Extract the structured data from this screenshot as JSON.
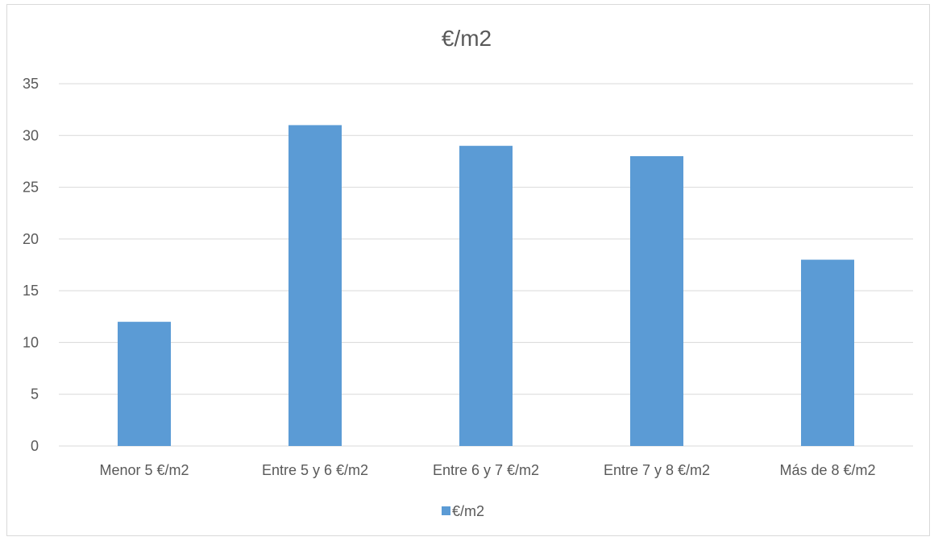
{
  "chart_data": {
    "type": "bar",
    "title": "€/m2",
    "categories": [
      "Menor 5 €/m2",
      "Entre 5 y 6 €/m2",
      "Entre 6 y 7 €/m2",
      "Entre 7 y 8 €/m2",
      "Más de 8 €/m2"
    ],
    "series": [
      {
        "name": "€/m2",
        "values": [
          12,
          31,
          29,
          28,
          18
        ],
        "color": "#5b9bd5"
      }
    ],
    "ylim": [
      0,
      35
    ],
    "yticks": [
      0,
      5,
      10,
      15,
      20,
      25,
      30,
      35
    ],
    "xlabel": "",
    "ylabel": "",
    "grid": true,
    "legend": "bottom-center"
  }
}
